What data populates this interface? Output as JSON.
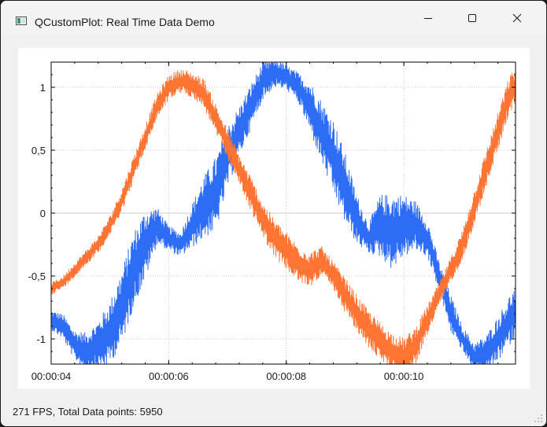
{
  "window": {
    "title": "QCustomPlot: Real Time Data Demo",
    "title_icon": "app-window-icon"
  },
  "controls": {
    "minimize_icon": "minimize-icon",
    "maximize_icon": "maximize-icon",
    "close_icon": "close-icon"
  },
  "status": {
    "text": "271 FPS, Total Data points: 5950"
  },
  "chart_data": {
    "type": "line",
    "title": "",
    "xlabel": "",
    "ylabel": "",
    "xlim": [
      4.0,
      11.9
    ],
    "ylim": [
      -1.2,
      1.2
    ],
    "x_ticks": [
      {
        "value": 4,
        "label": "00:00:04"
      },
      {
        "value": 6,
        "label": "00:00:06"
      },
      {
        "value": 8,
        "label": "00:00:08"
      },
      {
        "value": 10,
        "label": "00:00:10"
      }
    ],
    "y_ticks": [
      {
        "value": 1,
        "label": "1"
      },
      {
        "value": 0.5,
        "label": "0,5"
      },
      {
        "value": 0,
        "label": "0"
      },
      {
        "value": -0.5,
        "label": "-0,5"
      },
      {
        "value": -1,
        "label": "-1"
      }
    ],
    "grid": true,
    "legend": "none",
    "series": [
      {
        "color": "#2d6cf5",
        "x": [
          4.0,
          4.2,
          4.4,
          4.6,
          4.8,
          5.0,
          5.2,
          5.4,
          5.6,
          5.8,
          6.0,
          6.2,
          6.4,
          6.6,
          6.8,
          7.0,
          7.2,
          7.4,
          7.6,
          7.8,
          8.0,
          8.2,
          8.4,
          8.6,
          8.8,
          9.0,
          9.2,
          9.4,
          9.6,
          9.8,
          10.0,
          10.2,
          10.4,
          10.6,
          10.8,
          11.0,
          11.2,
          11.4,
          11.6,
          11.8,
          11.9
        ],
        "y": [
          -0.85,
          -0.9,
          -1.05,
          -1.1,
          -1.05,
          -0.95,
          -0.75,
          -0.45,
          -0.25,
          -0.1,
          -0.2,
          -0.25,
          -0.1,
          0.05,
          0.15,
          0.45,
          0.65,
          0.85,
          1.05,
          1.12,
          1.08,
          1.0,
          0.85,
          0.65,
          0.45,
          0.2,
          -0.05,
          -0.2,
          -0.1,
          -0.15,
          -0.1,
          -0.1,
          -0.2,
          -0.5,
          -0.8,
          -1.0,
          -1.15,
          -1.12,
          -1.0,
          -0.85,
          -0.78
        ],
        "noise": [
          0.08,
          0.1,
          0.12,
          0.15,
          0.2,
          0.25,
          0.3,
          0.3,
          0.28,
          0.15,
          0.1,
          0.1,
          0.18,
          0.25,
          0.3,
          0.25,
          0.2,
          0.18,
          0.15,
          0.12,
          0.1,
          0.12,
          0.2,
          0.25,
          0.3,
          0.28,
          0.2,
          0.12,
          0.25,
          0.3,
          0.25,
          0.2,
          0.15,
          0.12,
          0.15,
          0.1,
          0.12,
          0.15,
          0.18,
          0.2,
          0.2
        ]
      },
      {
        "color": "#ff7432",
        "x": [
          4.0,
          4.2,
          4.4,
          4.6,
          4.8,
          5.0,
          5.2,
          5.4,
          5.6,
          5.8,
          6.0,
          6.2,
          6.4,
          6.6,
          6.8,
          7.0,
          7.2,
          7.4,
          7.6,
          7.8,
          8.0,
          8.2,
          8.4,
          8.6,
          8.8,
          9.0,
          9.2,
          9.4,
          9.6,
          9.8,
          10.0,
          10.2,
          10.4,
          10.6,
          10.8,
          11.0,
          11.2,
          11.4,
          11.6,
          11.8,
          11.9
        ],
        "y": [
          -0.6,
          -0.55,
          -0.45,
          -0.35,
          -0.25,
          -0.1,
          0.1,
          0.35,
          0.6,
          0.85,
          1.0,
          1.05,
          1.02,
          0.95,
          0.75,
          0.55,
          0.35,
          0.15,
          -0.05,
          -0.2,
          -0.3,
          -0.4,
          -0.45,
          -0.38,
          -0.5,
          -0.65,
          -0.8,
          -0.92,
          -1.02,
          -1.1,
          -1.15,
          -1.05,
          -0.85,
          -0.65,
          -0.45,
          -0.25,
          0.05,
          0.35,
          0.65,
          0.95,
          1.0
        ],
        "noise": [
          0.05,
          0.05,
          0.06,
          0.06,
          0.07,
          0.08,
          0.09,
          0.1,
          0.1,
          0.1,
          0.1,
          0.1,
          0.1,
          0.12,
          0.12,
          0.12,
          0.12,
          0.14,
          0.14,
          0.15,
          0.15,
          0.15,
          0.14,
          0.12,
          0.12,
          0.14,
          0.15,
          0.15,
          0.15,
          0.15,
          0.16,
          0.15,
          0.12,
          0.1,
          0.1,
          0.12,
          0.14,
          0.15,
          0.15,
          0.15,
          0.15
        ]
      }
    ]
  }
}
